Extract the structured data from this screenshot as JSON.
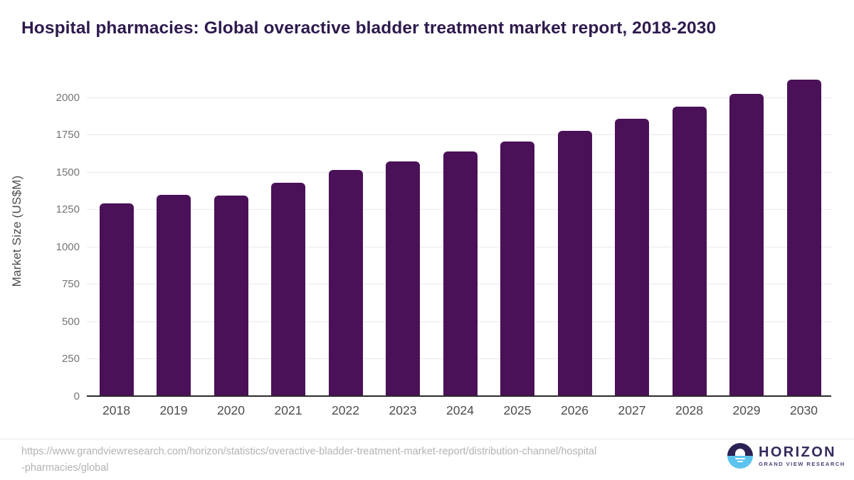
{
  "title": "Hospital pharmacies: Global overactive bladder treatment market report, 2018-2030",
  "chart_data": {
    "type": "bar",
    "categories": [
      "2018",
      "2019",
      "2020",
      "2021",
      "2022",
      "2023",
      "2024",
      "2025",
      "2026",
      "2027",
      "2028",
      "2029",
      "2030"
    ],
    "values": [
      1290,
      1350,
      1342,
      1430,
      1512,
      1573,
      1636,
      1705,
      1776,
      1857,
      1936,
      2022,
      2120
    ],
    "title": "Hospital pharmacies: Global overactive bladder treatment market report, 2018-2030",
    "xlabel": "",
    "ylabel": "Market Size (US$M)",
    "ylim": [
      0,
      2160
    ],
    "yticks": [
      0,
      250,
      500,
      750,
      1000,
      1250,
      1500,
      1750,
      2000
    ],
    "grid": "horizontal",
    "legend": "none",
    "bar_color": "#4A1158"
  },
  "colors": {
    "title_text": "#2E1A4D",
    "bar": "#4A1158",
    "axis_line": "#2B2B2B",
    "gridline": "#E9E9E9",
    "y_tick_text": "#757575",
    "x_tick_text": "#4D4D4D",
    "url_text": "#B3B3B3",
    "logo_dark": "#2B2153",
    "logo_light": "#5BC3EE"
  },
  "footer": {
    "source_url_line1": "https://www.grandviewresearch.com/horizon/statistics/overactive-bladder-treatment-market-report/distribution-channel/hospital",
    "source_url_line2": "-pharmacies/global",
    "logo": {
      "name": "HORIZON",
      "subtitle": "GRAND VIEW RESEARCH"
    }
  }
}
